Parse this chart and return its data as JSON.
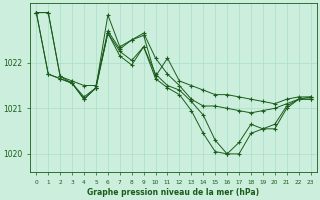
{
  "title": "Graphe pression niveau de la mer (hPa)",
  "bg_color": "#cceedd",
  "grid_color": "#aaddcc",
  "line_color": "#1a5c1a",
  "marker_color": "#1a5c1a",
  "xlim": [
    -0.5,
    23.5
  ],
  "ylim": [
    1019.6,
    1023.3
  ],
  "yticks": [
    1020,
    1021,
    1022
  ],
  "xticks": [
    0,
    1,
    2,
    3,
    4,
    5,
    6,
    7,
    8,
    9,
    10,
    11,
    12,
    13,
    14,
    15,
    16,
    17,
    18,
    19,
    20,
    21,
    22,
    23
  ],
  "series": {
    "line1": [
      1023.1,
      1023.1,
      1021.7,
      1021.6,
      1021.5,
      1021.5,
      1022.7,
      1022.3,
      1022.5,
      1022.6,
      1021.7,
      1022.1,
      1021.6,
      1021.5,
      1021.4,
      1021.3,
      1021.3,
      1021.25,
      1021.2,
      1021.15,
      1021.1,
      1021.2,
      1021.25,
      1021.25
    ],
    "line2": [
      1023.1,
      1023.1,
      1021.7,
      1021.55,
      1021.2,
      1021.45,
      1023.05,
      1022.35,
      1022.5,
      1022.65,
      1022.1,
      1021.75,
      1021.5,
      1021.2,
      1021.05,
      1021.05,
      1021.0,
      1020.95,
      1020.9,
      1020.95,
      1021.0,
      1021.1,
      1021.2,
      1021.25
    ],
    "line3": [
      1023.1,
      1021.75,
      1021.65,
      1021.55,
      1021.25,
      1021.45,
      1022.65,
      1022.25,
      1022.05,
      1022.35,
      1021.75,
      1021.5,
      1021.4,
      1021.15,
      1020.85,
      1020.3,
      1020.0,
      1020.0,
      1020.45,
      1020.55,
      1020.65,
      1021.05,
      1021.2,
      1021.2
    ],
    "line4": [
      1023.1,
      1021.75,
      1021.65,
      1021.55,
      1021.2,
      1021.45,
      1022.65,
      1022.15,
      1021.95,
      1022.35,
      1021.65,
      1021.45,
      1021.3,
      1020.95,
      1020.45,
      1020.05,
      1020.0,
      1020.25,
      1020.65,
      1020.55,
      1020.55,
      1021.0,
      1021.2,
      1021.2
    ]
  }
}
